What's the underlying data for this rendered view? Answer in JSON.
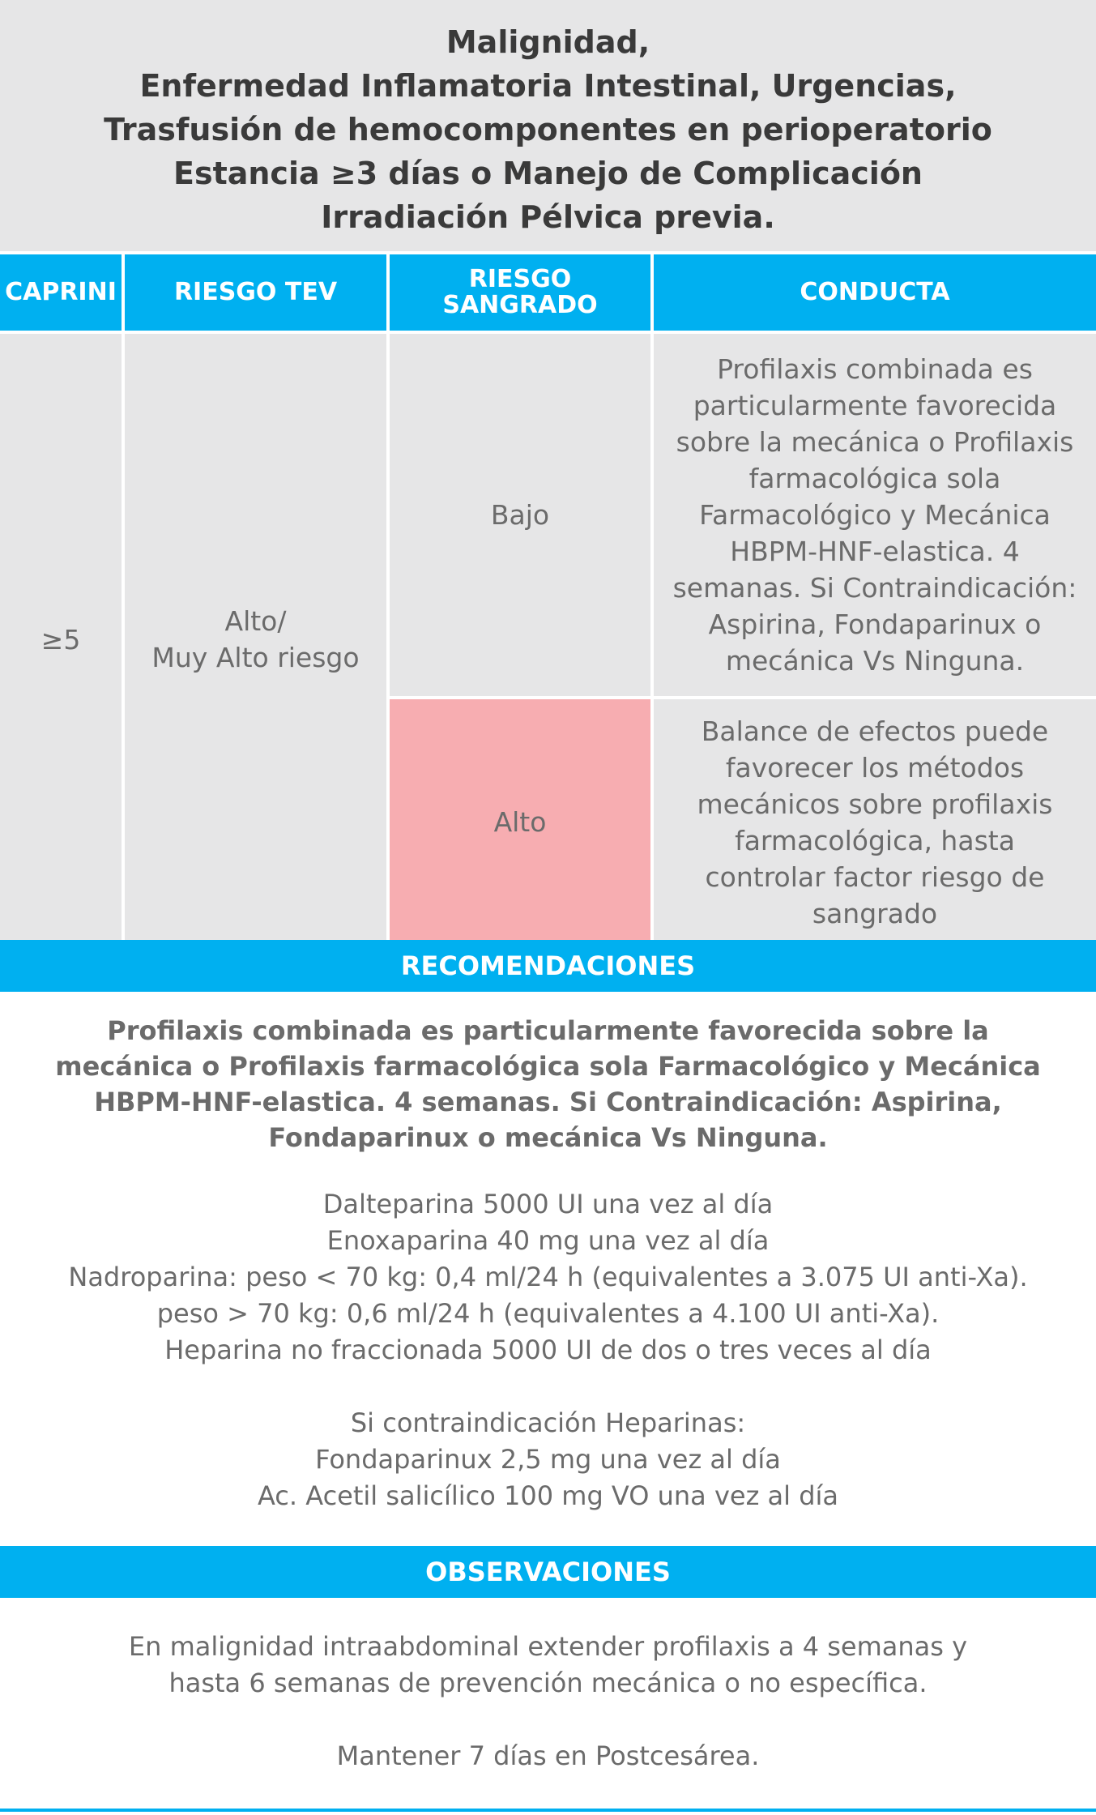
{
  "header": {
    "lines": [
      "Malignidad,",
      "Enfermedad Inflamatoria Intestinal, Urgencias,",
      "Trasfusión de hemocomponentes en perioperatorio",
      "Estancia ≥3 días o Manejo de Complicación",
      "Irradiación Pélvica previa."
    ]
  },
  "table": {
    "columns": [
      "CAPRINI",
      "RIESGO TEV",
      "RIESGO SANGRADO",
      "CONDUCTA"
    ],
    "caprini": "≥5",
    "riesgo_tev": [
      "Alto/",
      "Muy Alto riesgo"
    ],
    "rows": [
      {
        "riesgo_sangrado": "Bajo",
        "conducta": "Profilaxis combinada es particularmente favorecida sobre la mecánica o Profilaxis farmacológica sola Farmacológico y Mecánica HBPM-HNF-elastica. 4 semanas. Si Contraindicación: Aspirina, Fondaparinux o mecánica Vs Ninguna."
      },
      {
        "riesgo_sangrado": "Alto",
        "conducta": "Balance de efectos puede favorecer los métodos mecánicos sobre profilaxis farmacológica, hasta controlar factor riesgo de sangrado",
        "highlight_color": "#f7adb1"
      }
    ]
  },
  "recomendaciones": {
    "title": "RECOMENDACIONES",
    "bold_text": "Profilaxis combinada es particularmente favorecida sobre la mecánica o Profilaxis farmacológica sola Farmacológico y Mecánica HBPM-HNF-elastica. 4 semanas. Si Contraindicación: Aspirina, Fondaparinux o mecánica Vs Ninguna.",
    "dosis": [
      "Dalteparina 5000 UI una vez al día",
      "Enoxaparina 40 mg una vez al día",
      "Nadroparina: peso < 70 kg: 0,4 ml/24 h (equivalentes a 3.075 UI anti-Xa).",
      "peso > 70 kg: 0,6 ml/24 h (equivalentes a 4.100 UI anti-Xa).",
      "Heparina no fraccionada 5000 UI de dos o tres veces al día"
    ],
    "contraindicacion": [
      "Si contraindicación Heparinas:",
      "Fondaparinux 2,5 mg una vez al día",
      "Ac. Acetil salicílico 100 mg VO una vez al día"
    ]
  },
  "observaciones": {
    "title": "OBSERVACIONES",
    "text1": "En malignidad intraabdominal extender profilaxis a 4 semanas y hasta 6 semanas de prevención mecánica o no específica.",
    "text2": "Mantener 7 días en Postcesárea."
  },
  "colors": {
    "accent": "#00b0f0",
    "cell_bg": "#e6e6e7",
    "alto_bg": "#f7adb1"
  }
}
